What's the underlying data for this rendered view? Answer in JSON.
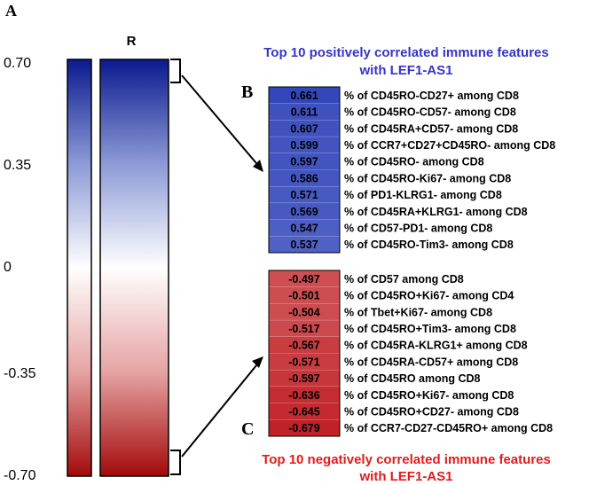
{
  "panel_a_label": "A",
  "panel_b_label": "B",
  "panel_c_label": "C",
  "column_label": "R",
  "colorbar_ticks": [
    "0.70",
    "0.35",
    "0",
    "-0.35",
    "-0.70"
  ],
  "top_title": [
    "Top 10 positively correlated immune features",
    "with LEF1-AS1"
  ],
  "bottom_title": [
    "Top 10 negatively correlated immune features",
    "with LEF1-AS1"
  ],
  "colors": {
    "pos": "#1a33a6",
    "neg": "#b40f14",
    "pos_title": "#3535cc",
    "neg_title": "#e11b1b"
  },
  "chart_data": {
    "type": "heatmap",
    "colorbar": {
      "min": -0.7,
      "max": 0.7,
      "ticks": [
        0.7,
        0.35,
        0,
        -0.35,
        -0.7
      ]
    },
    "positive": [
      {
        "value": "0.661",
        "feature": "% of CD45RO-CD27+ among CD8"
      },
      {
        "value": "0.611",
        "feature": "% of CD45RO-CD57- among CD8"
      },
      {
        "value": "0.607",
        "feature": "% of CD45RA+CD57- among CD8"
      },
      {
        "value": "0.599",
        "feature": "% of CCR7+CD27+CD45RO- among CD8"
      },
      {
        "value": "0.597",
        "feature": "% of CD45RO- among CD8"
      },
      {
        "value": "0.586",
        "feature": "% of CD45RO-Ki67- among CD8"
      },
      {
        "value": "0.571",
        "feature": "% of PD1-KLRG1- among CD8"
      },
      {
        "value": "0.569",
        "feature": "% of CD45RA+KLRG1- among CD8"
      },
      {
        "value": "0.547",
        "feature": "% of CD57-PD1- among CD8"
      },
      {
        "value": "0.537",
        "feature": "% of CD45RO-Tim3- among CD8"
      }
    ],
    "negative": [
      {
        "value": "-0.497",
        "feature": "% of CD57 among CD8"
      },
      {
        "value": "-0.501",
        "feature": "% of CD45RO+Ki67- among CD4"
      },
      {
        "value": "-0.504",
        "feature": "% of Tbet+Ki67- among CD8"
      },
      {
        "value": "-0.517",
        "feature": "% of CD45RO+Tim3- among CD8"
      },
      {
        "value": "-0.567",
        "feature": "% of CD45RA-KLRG1+ among CD8"
      },
      {
        "value": "-0.571",
        "feature": "% of CD45RA-CD57+ among CD8"
      },
      {
        "value": "-0.597",
        "feature": "% of CD45RO among CD8"
      },
      {
        "value": "-0.636",
        "feature": "% of CD45RO+Ki67- among CD8"
      },
      {
        "value": "-0.645",
        "feature": "% of CD45RO+CD27- among CD8"
      },
      {
        "value": "-0.679",
        "feature": "% of CCR7-CD27-CD45RO+ among CD8"
      }
    ]
  }
}
